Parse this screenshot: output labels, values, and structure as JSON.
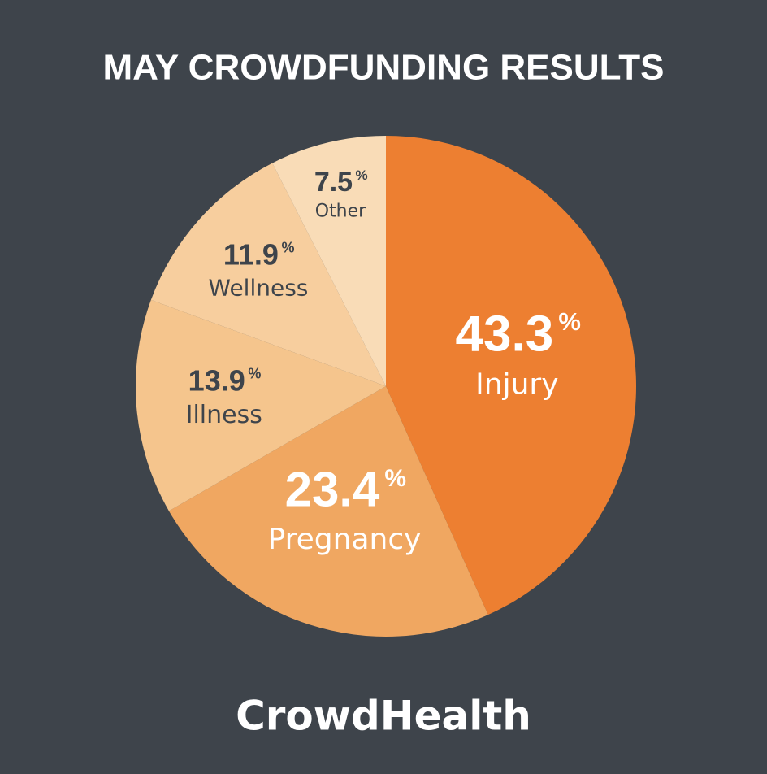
{
  "chart_data": {
    "type": "pie",
    "title": "MAY CROWDFUNDING RESULTS",
    "categories": [
      "Injury",
      "Pregnancy",
      "Illness",
      "Wellness",
      "Other"
    ],
    "values": [
      43.3,
      23.4,
      13.9,
      11.9,
      7.5
    ],
    "unit": "%",
    "colors": [
      "#ED7F31",
      "#F0A761",
      "#F5C58D",
      "#F7CE9E",
      "#F9DCB7"
    ],
    "brand": "CrowdHealth"
  }
}
